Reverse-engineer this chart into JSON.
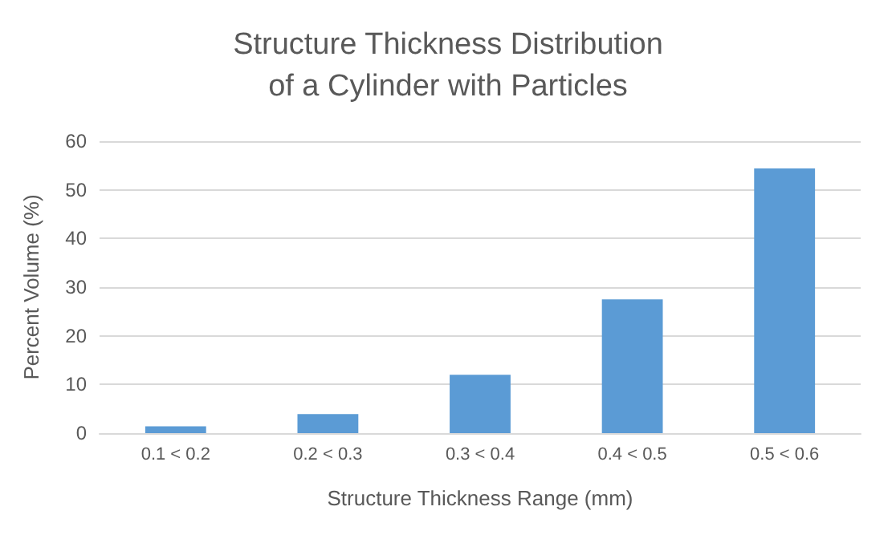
{
  "chart_data": {
    "type": "bar",
    "title": "Structure Thickness Distribution\nof a Cylinder with Particles",
    "xlabel": "Structure Thickness Range (mm)",
    "ylabel": "Percent Volume (%)",
    "categories": [
      "0.1 < 0.2",
      "0.2 < 0.3",
      "0.3 < 0.4",
      "0.4 < 0.5",
      "0.5 < 0.6"
    ],
    "values": [
      1.4,
      3.9,
      12,
      27.5,
      54.4
    ],
    "color": "#5b9bd5",
    "ylim": [
      0,
      60
    ],
    "yticks": [
      0,
      10,
      20,
      30,
      40,
      50,
      60
    ],
    "grid": "y"
  }
}
